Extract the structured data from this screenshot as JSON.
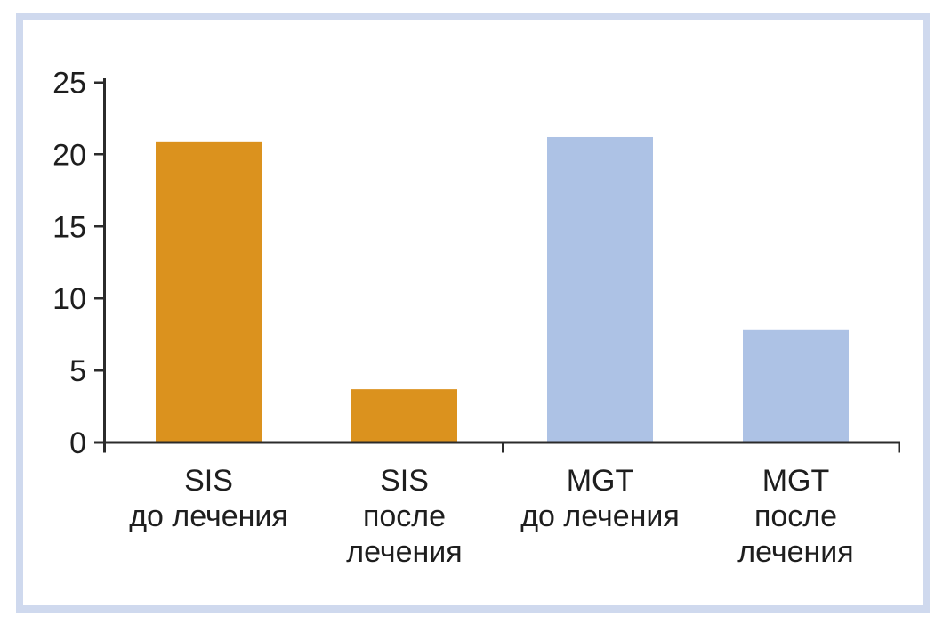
{
  "chart_data": {
    "type": "bar",
    "title": "",
    "xlabel": "",
    "ylabel": "",
    "categories": [
      {
        "id": "sis-before",
        "lines": [
          "SIS",
          "до лечения"
        ]
      },
      {
        "id": "sis-after",
        "lines": [
          "SIS",
          "после",
          "лечения"
        ]
      },
      {
        "id": "mgt-before",
        "lines": [
          "MGT",
          "до лечения"
        ]
      },
      {
        "id": "mgt-after",
        "lines": [
          "MGT",
          "после",
          "лечения"
        ]
      }
    ],
    "values": [
      20.9,
      3.7,
      21.2,
      7.8
    ],
    "bar_colors": [
      "#DB921E",
      "#DB921E",
      "#ADC2E5",
      "#ADC2E5"
    ],
    "groups": [
      {
        "name": "SIS",
        "color": "#DB921E",
        "bar_indexes": [
          0,
          1
        ]
      },
      {
        "name": "MGT",
        "color": "#ADC2E5",
        "bar_indexes": [
          2,
          3
        ]
      }
    ],
    "ylim": [
      0,
      25
    ],
    "yticks": [
      0,
      5,
      10,
      15,
      20,
      25
    ],
    "grid": false,
    "legend": "none",
    "group_divider_ticks": true
  },
  "frame": {
    "border_color": "#CFD9EE",
    "background_color": "#FFFFFF"
  },
  "axis": {
    "line_color": "#2B2B2B",
    "text_color": "#1E1E1E"
  }
}
